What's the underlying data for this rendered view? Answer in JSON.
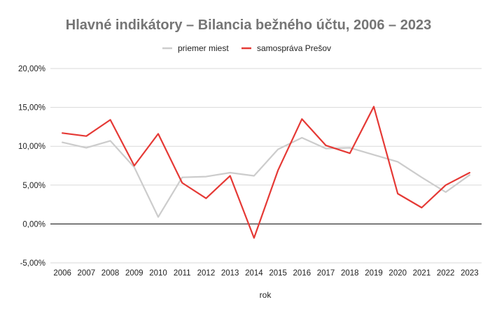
{
  "chart_data": {
    "type": "line",
    "title": "Hlavné indikátory – Bilancia bežného účtu, 2006 – 2023",
    "xlabel": "rok",
    "ylabel": "",
    "x": [
      "2006",
      "2007",
      "2008",
      "2009",
      "2010",
      "2011",
      "2012",
      "2013",
      "2014",
      "2015",
      "2016",
      "2017",
      "2018",
      "2019",
      "2020",
      "2021",
      "2022",
      "2023"
    ],
    "ylim": [
      -5,
      20
    ],
    "yticks": [
      -5,
      0,
      5,
      10,
      15,
      20
    ],
    "ytick_labels": [
      "-5,00%",
      "0,00%",
      "5,00%",
      "10,00%",
      "15,00%",
      "20,00%"
    ],
    "grid": true,
    "legend_position": "top",
    "series": [
      {
        "name": "priemer miest",
        "color": "#cccccc",
        "values": [
          10.5,
          9.8,
          10.7,
          7.3,
          0.9,
          6.0,
          6.1,
          6.6,
          6.2,
          9.6,
          11.1,
          9.7,
          9.8,
          8.9,
          8.0,
          6.0,
          4.1,
          6.3
        ]
      },
      {
        "name": "samospráva Prešov",
        "color": "#e53935",
        "values": [
          11.7,
          11.3,
          13.4,
          7.5,
          11.6,
          5.3,
          3.3,
          6.2,
          -1.8,
          6.9,
          13.5,
          10.1,
          9.1,
          15.1,
          3.9,
          2.1,
          5.0,
          6.6
        ]
      }
    ]
  }
}
